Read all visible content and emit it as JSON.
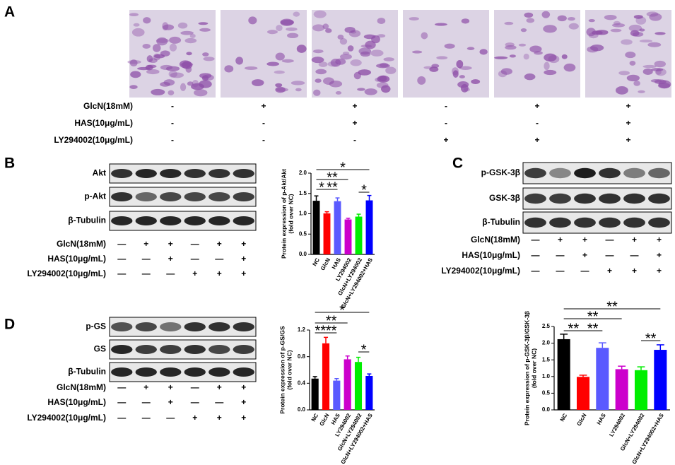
{
  "panel_a": {
    "label": "A",
    "conditions": [
      {
        "label": "GlcN(18mM)",
        "marks": [
          "-",
          "+",
          "+",
          "-",
          "+",
          "+"
        ]
      },
      {
        "label": "HAS(10μg/mL)",
        "marks": [
          "-",
          "-",
          "+",
          "-",
          "-",
          "+"
        ]
      },
      {
        "label": "LY294002(10μg/mL)",
        "marks": [
          "-",
          "-",
          "-",
          "+",
          "+",
          "+"
        ]
      }
    ]
  },
  "panel_b": {
    "label": "B",
    "blots": [
      "Akt",
      "p-Akt",
      "β-Tubulin"
    ],
    "conditions": [
      {
        "label": "GlcN(18mM)",
        "marks": [
          "—",
          "+",
          "+",
          "—",
          "+",
          "+"
        ]
      },
      {
        "label": "HAS(10μg/mL)",
        "marks": [
          "—",
          "—",
          "+",
          "—",
          "—",
          "+"
        ]
      },
      {
        "label": "LY294002(10μg/mL)",
        "marks": [
          "—",
          "—",
          "—",
          "+",
          "+",
          "+"
        ]
      }
    ]
  },
  "panel_c": {
    "label": "C",
    "blots": [
      "p-GSK-3β",
      "GSK-3β",
      "β-Tubulin"
    ],
    "conditions": [
      {
        "label": "GlcN(18mM)",
        "marks": [
          "—",
          "+",
          "+",
          "—",
          "+",
          "+"
        ]
      },
      {
        "label": "HAS(10μg/mL)",
        "marks": [
          "—",
          "—",
          "+",
          "—",
          "—",
          "+"
        ]
      },
      {
        "label": "LY294002(10μg/mL)",
        "marks": [
          "—",
          "—",
          "—",
          "+",
          "+",
          "+"
        ]
      }
    ]
  },
  "panel_d": {
    "label": "D",
    "blots": [
      "p-GS",
      "GS",
      "β-Tubulin"
    ],
    "conditions": [
      {
        "label": "GlcN(18mM)",
        "marks": [
          "—",
          "+",
          "+",
          "—",
          "+",
          "+"
        ]
      },
      {
        "label": "HAS(10μg/mL)",
        "marks": [
          "—",
          "—",
          "+",
          "—",
          "—",
          "+"
        ]
      },
      {
        "label": "LY294002(10μg/mL)",
        "marks": [
          "—",
          "—",
          "—",
          "+",
          "+",
          "+"
        ]
      }
    ]
  },
  "chart_data": [
    {
      "type": "bar",
      "y_label": [
        "Protein expression of p-Akt/Akt",
        "(fold over NC)"
      ],
      "categories": [
        "NC",
        "GlcN",
        "HAS",
        "LY294002",
        "GlcN+LY294002",
        "GlcN+LY294002+HAS"
      ],
      "values": [
        1.32,
        1.01,
        1.31,
        0.86,
        0.93,
        1.33
      ],
      "errors": [
        0.12,
        0.04,
        0.08,
        0.03,
        0.06,
        0.12
      ],
      "colors": [
        "#000000",
        "#ff0000",
        "#5a5aff",
        "#cc00cc",
        "#00ee00",
        "#0000ff"
      ],
      "ylim": [
        0,
        2.0
      ],
      "yticks": [
        {
          "value": 0,
          "label": "0.0"
        },
        {
          "value": 0.5,
          "label": "0.5"
        },
        {
          "value": 1.0,
          "label": "1.0"
        },
        {
          "value": 1.5,
          "label": "1.5"
        },
        {
          "value": 2.0,
          "label": "2.0"
        }
      ],
      "annotations": [
        "*",
        "**",
        "**",
        "*",
        "*"
      ]
    },
    {
      "type": "bar",
      "y_label": [
        "Protein expression of p-GS/GS",
        "(fold over NC)"
      ],
      "categories": [
        "NC",
        "GlcN",
        "HAS",
        "LY294002",
        "GlcN+LY294002",
        "GlcN+LY294002+HAS"
      ],
      "values": [
        0.47,
        1.0,
        0.44,
        0.76,
        0.72,
        0.51
      ],
      "errors": [
        0.03,
        0.09,
        0.03,
        0.05,
        0.07,
        0.03
      ],
      "colors": [
        "#000000",
        "#ff0000",
        "#5a5aff",
        "#cc00cc",
        "#00ee00",
        "#0000ff"
      ],
      "ylim": [
        0,
        1.2
      ],
      "yticks": [
        {
          "value": 0,
          "label": "0.0"
        },
        {
          "value": 0.4,
          "label": "0.4"
        },
        {
          "value": 0.8,
          "label": "0.8"
        },
        {
          "value": 1.2,
          "label": "1.2"
        }
      ],
      "annotations": [
        "*",
        "**",
        "**",
        "**",
        "*"
      ]
    },
    {
      "type": "bar",
      "y_label": [
        "Protein expression of p-GSK-3β/GSK-3β",
        "(fold over  NC)"
      ],
      "categories": [
        "NC",
        "GlcN",
        "HAS",
        "LY294002",
        "GlcN+LY294002",
        "GlcN+LY294002+HAS"
      ],
      "values": [
        2.12,
        0.99,
        1.86,
        1.22,
        1.19,
        1.8
      ],
      "errors": [
        0.15,
        0.05,
        0.15,
        0.09,
        0.1,
        0.15
      ],
      "colors": [
        "#000000",
        "#ff0000",
        "#5a5aff",
        "#cc00cc",
        "#00ee00",
        "#0000ff"
      ],
      "ylim": [
        0,
        2.5
      ],
      "yticks": [
        {
          "value": 0,
          "label": "0.0"
        },
        {
          "value": 0.5,
          "label": "0.5"
        },
        {
          "value": 1.0,
          "label": "1.0"
        },
        {
          "value": 1.5,
          "label": "1.5"
        },
        {
          "value": 2.0,
          "label": "2.0"
        },
        {
          "value": 2.5,
          "label": "2.5"
        }
      ],
      "annotations": [
        "**",
        "**",
        "**",
        "**",
        "**"
      ]
    }
  ]
}
